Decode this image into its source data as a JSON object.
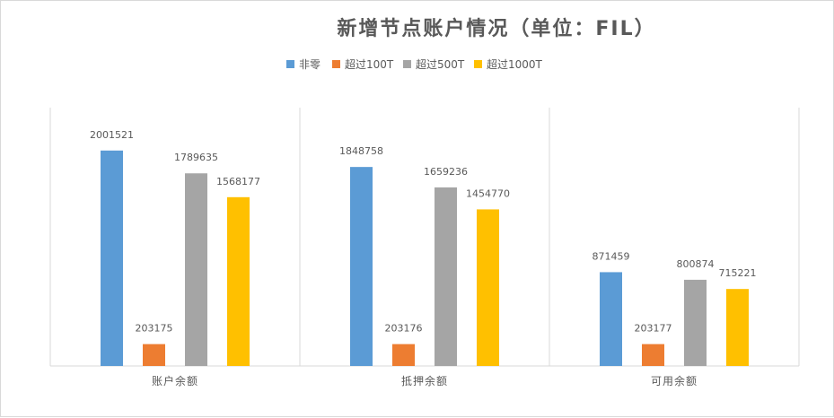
{
  "chart_data": {
    "type": "bar",
    "title": "新增节点账户情况（单位：FIL）",
    "categories": [
      "账户余额",
      "抵押余额",
      "可用余额"
    ],
    "series": [
      {
        "name": "非零",
        "color": "#5b9bd5",
        "values": [
          2001521,
          1848758,
          871459
        ]
      },
      {
        "name": "超过100T",
        "color": "#ed7d31",
        "values": [
          203175,
          203176,
          203177
        ]
      },
      {
        "name": "超过500T",
        "color": "#a5a5a5",
        "values": [
          1789635,
          1659236,
          800874
        ]
      },
      {
        "name": "超过1000T",
        "color": "#ffc000",
        "values": [
          1568177,
          1454770,
          715221
        ]
      }
    ],
    "ylim": [
      0,
      2400000
    ],
    "grid": false,
    "legend": "top",
    "xlabel": "",
    "ylabel": ""
  }
}
